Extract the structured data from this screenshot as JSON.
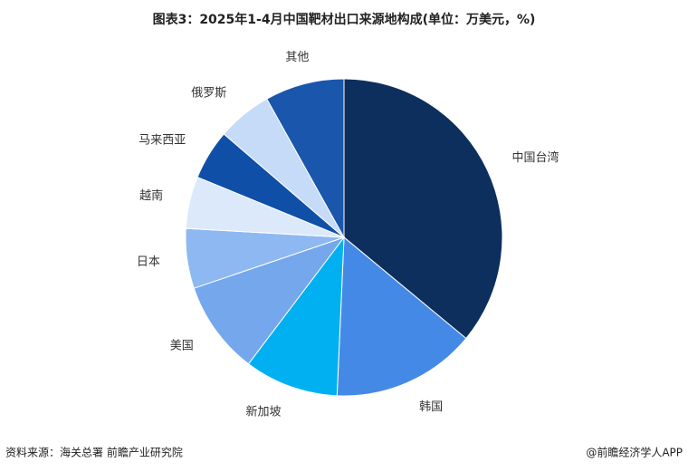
{
  "chart_data": {
    "type": "pie",
    "title": "图表3：2025年1-4月中国靶材出口来源地构成(单位：万美元，%)",
    "categories": [
      "中国台湾",
      "韩国",
      "新加坡",
      "美国",
      "日本",
      "越南",
      "马来西亚",
      "俄罗斯",
      "其他"
    ],
    "values": [
      36.0,
      14.7,
      9.6,
      9.5,
      6.1,
      5.3,
      5.1,
      5.6,
      8.1
    ],
    "colors": [
      "#0d2f5e",
      "#4589e6",
      "#00b0f0",
      "#74a7ec",
      "#8db8f1",
      "#dce9fb",
      "#0f4fa8",
      "#c6dbf7",
      "#1a56ac"
    ],
    "source": "资料来源：海关总署 前瞻产业研究院",
    "credit": "@前瞻经济学人APP"
  }
}
